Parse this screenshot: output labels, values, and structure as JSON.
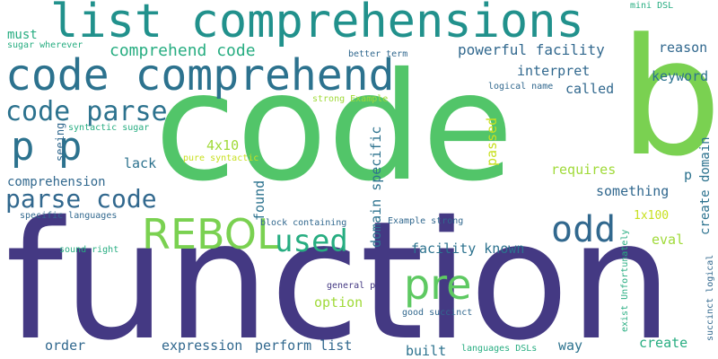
{
  "colors": {
    "dark_purple": "#443983",
    "blue": "#31688e",
    "teal_blue": "#2c728e",
    "teal": "#21918c",
    "green_teal": "#27ad81",
    "green": "#5ec962",
    "bright_green": "#7ad151",
    "light_green": "#a0da39",
    "yellow_green": "#c8e020"
  },
  "words": {
    "function": "function",
    "code": "code",
    "b": "b",
    "list_comprehensions": "list comprehensions",
    "code_comprehend": "code comprehend",
    "code_parse": "code parse",
    "p_p": "p p",
    "rebol": "REBOL",
    "used": "used",
    "odd": "odd",
    "pre": "pre",
    "parse_code": "parse code",
    "comprehend_code": "comprehend code",
    "powerful_facility": "powerful facility",
    "must": "must",
    "sugar_wherever": "sugar wherever",
    "reason": "reason",
    "better_term": "better term",
    "mini_dsl": "mini DSL",
    "interpret": "interpret",
    "keyword": "keyword",
    "logical_name": "logical name",
    "called": "called",
    "strong_example": "strong Example",
    "syntactic_sugar": "syntactic sugar",
    "seeing": "seeing",
    "passed": "passed",
    "4x10": "4x10",
    "pure_syntactic": "pure syntactic",
    "lack": "lack",
    "requires": "requires",
    "p": "p",
    "comprehension": "comprehension",
    "domain_specific": "domain specific",
    "something": "something",
    "create_domain": "create domain",
    "found": "found",
    "1x100": "1x100",
    "specific_languages": "specific languages",
    "block_containing": "block containing",
    "example_strong": "Example strong",
    "eval": "eval",
    "facility_known": "facility known",
    "sound_right": "sound right",
    "exist_unfortunately": "exist Unfortunately",
    "succinct_logical": "succinct logical",
    "general_p": "general p",
    "option": "option",
    "good_succinct": "good succinct",
    "order": "order",
    "expression": "expression",
    "perform_list": "perform list",
    "built": "built",
    "languages_dsls": "languages DSLs",
    "way": "way",
    "create": "create"
  }
}
